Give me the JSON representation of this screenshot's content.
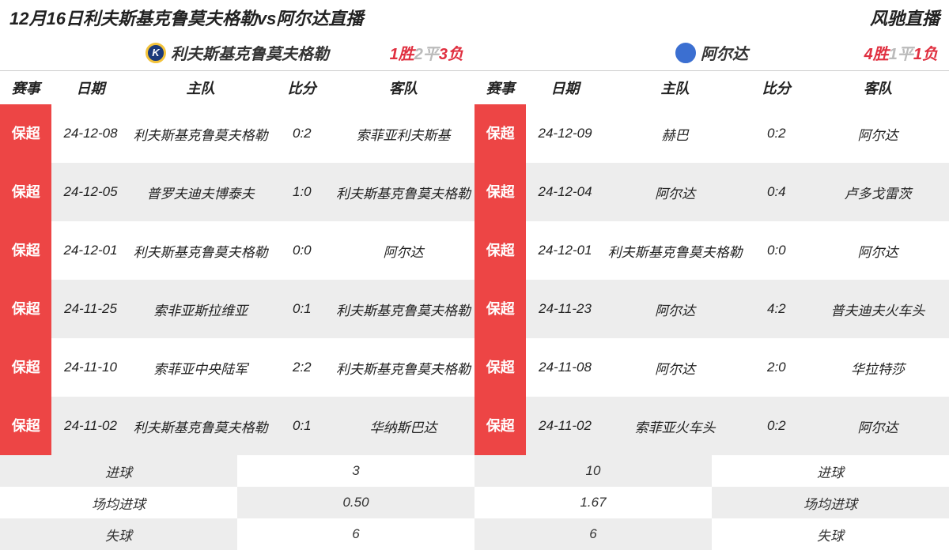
{
  "header": {
    "title": "12月16日利夫斯基克鲁莫夫格勒vs阿尔达直播",
    "brand": "风驰直播"
  },
  "columns": {
    "comp": "赛事",
    "date": "日期",
    "home": "主队",
    "score": "比分",
    "away": "客队"
  },
  "competition_label": "保超",
  "colors": {
    "badge_bg": "#ed4545",
    "badge_fg": "#ffffff",
    "row_alt": "#ededed",
    "win": "#e03040",
    "draw": "#bbbbbb"
  },
  "left": {
    "team": "利夫斯基克鲁莫夫格勒",
    "logo_bg": "#1b3a7a",
    "logo_ring": "#f3c33b",
    "logo_text": "K",
    "record": {
      "w": "1胜",
      "d": "2平",
      "l": "3负"
    },
    "rows": [
      {
        "date": "24-12-08",
        "home": "利夫斯基克鲁莫夫格勒",
        "score": "0:2",
        "away": "索菲亚利夫斯基"
      },
      {
        "date": "24-12-05",
        "home": "普罗夫迪夫博泰夫",
        "score": "1:0",
        "away": "利夫斯基克鲁莫夫格勒"
      },
      {
        "date": "24-12-01",
        "home": "利夫斯基克鲁莫夫格勒",
        "score": "0:0",
        "away": "阿尔达"
      },
      {
        "date": "24-11-25",
        "home": "索非亚斯拉维亚",
        "score": "0:1",
        "away": "利夫斯基克鲁莫夫格勒"
      },
      {
        "date": "24-11-10",
        "home": "索菲亚中央陆军",
        "score": "2:2",
        "away": "利夫斯基克鲁莫夫格勒"
      },
      {
        "date": "24-11-02",
        "home": "利夫斯基克鲁莫夫格勒",
        "score": "0:1",
        "away": "华纳斯巴达"
      }
    ]
  },
  "right": {
    "team": "阿尔达",
    "logo_bg": "#3b6fd1",
    "logo_ring": "#3b6fd1",
    "logo_text": "",
    "record": {
      "w": "4胜",
      "d": "1平",
      "l": "1负"
    },
    "rows": [
      {
        "date": "24-12-09",
        "home": "赫巴",
        "score": "0:2",
        "away": "阿尔达"
      },
      {
        "date": "24-12-04",
        "home": "阿尔达",
        "score": "0:4",
        "away": "卢多戈雷茨"
      },
      {
        "date": "24-12-01",
        "home": "利夫斯基克鲁莫夫格勒",
        "score": "0:0",
        "away": "阿尔达"
      },
      {
        "date": "24-11-23",
        "home": "阿尔达",
        "score": "4:2",
        "away": "普夫迪夫火车头"
      },
      {
        "date": "24-11-08",
        "home": "阿尔达",
        "score": "2:0",
        "away": "华拉特莎"
      },
      {
        "date": "24-11-02",
        "home": "索菲亚火车头",
        "score": "0:2",
        "away": "阿尔达"
      }
    ]
  },
  "stats": {
    "labels": {
      "goals": "进球",
      "avg": "场均进球",
      "conceded": "失球"
    },
    "left": {
      "goals": "3",
      "avg": "0.50",
      "conceded": "6"
    },
    "right": {
      "goals": "10",
      "avg": "1.67",
      "conceded": "6"
    }
  }
}
